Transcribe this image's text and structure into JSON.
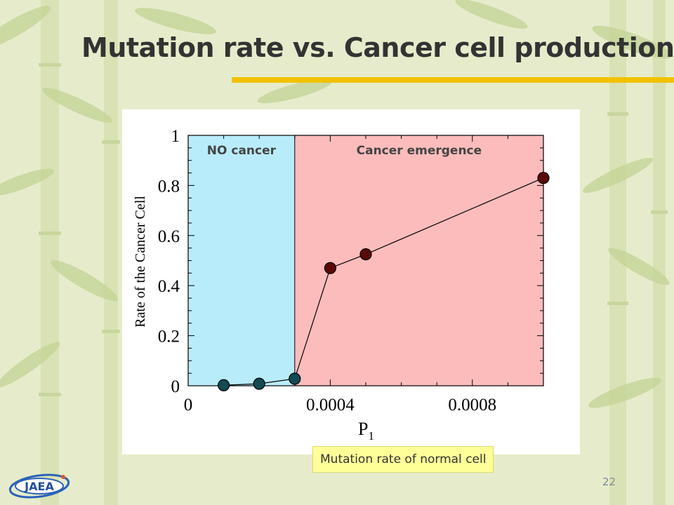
{
  "slide": {
    "title": "Mutation rate vs. Cancer cell production",
    "page_number": "22",
    "caption": "Mutation rate of normal cell",
    "logo_text": "JAEA",
    "accent_color": "#f2c200",
    "background_color": "#e6eccb",
    "background_motif": "bamboo"
  },
  "chart_data": {
    "type": "line",
    "xlabel": "P",
    "xlabel_subscript": "1",
    "ylabel": "Rate of the Cancer Cell",
    "xlim": [
      0,
      0.001
    ],
    "ylim": [
      0,
      1
    ],
    "x_ticks": [
      0,
      0.0004,
      0.0008
    ],
    "x_tick_labels": [
      "0",
      "0.0004",
      "0.0008"
    ],
    "y_ticks": [
      0,
      0.2,
      0.4,
      0.6,
      0.8,
      1
    ],
    "y_tick_labels": [
      "0",
      "0.2",
      "0.4",
      "0.6",
      "0.8",
      "1"
    ],
    "regions": [
      {
        "label": "NO cancer",
        "x_start": 0,
        "x_end": 0.0003,
        "color": "#b9ecfb"
      },
      {
        "label": "Cancer emergence",
        "x_start": 0.0003,
        "x_end": 0.001,
        "color": "#fcbcbc"
      }
    ],
    "series": [
      {
        "x": [
          0.0001,
          0.0002,
          0.0003,
          0.0004,
          0.0005,
          0.001
        ],
        "y": [
          0.002,
          0.008,
          0.028,
          0.47,
          0.525,
          0.83
        ],
        "marker_colors": [
          "#134a54",
          "#134a54",
          "#134a54",
          "#5a0808",
          "#5a0808",
          "#5a0808"
        ]
      }
    ],
    "grid": false
  }
}
